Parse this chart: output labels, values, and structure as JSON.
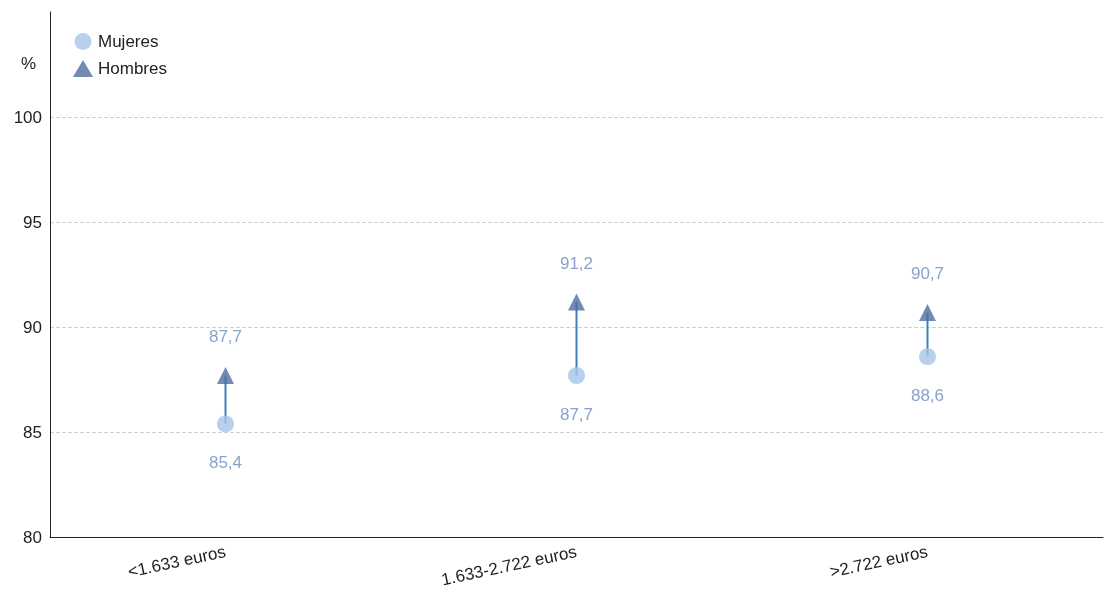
{
  "chart_data": {
    "type": "scatter",
    "ylabel": "%",
    "categories": [
      "<1.633 euros",
      "1.633-2.722 euros",
      ">2.722 euros"
    ],
    "series": [
      {
        "type": "bar",
        "color": "#3f7fbf",
        "base": [
          85.4,
          87.7,
          88.6
        ],
        "values": [
          2.3,
          3.5,
          2.1
        ]
      },
      {
        "name": "Mujeres",
        "color": "#a7c4e8",
        "marker": "circle",
        "values": [
          85.4,
          87.7,
          88.6
        ],
        "value_labels": [
          "85,4",
          "87,7",
          "88,6"
        ]
      },
      {
        "name": "Hombres",
        "color": "#4c6fa0",
        "marker": "triangle",
        "values": [
          87.7,
          91.2,
          90.7
        ],
        "value_labels": [
          "87,7",
          "91,2",
          "90,7"
        ]
      }
    ],
    "ylim": [
      80,
      105
    ],
    "yticks": [
      80,
      85,
      90,
      95,
      100
    ],
    "grid": "y",
    "legend": "top left"
  }
}
